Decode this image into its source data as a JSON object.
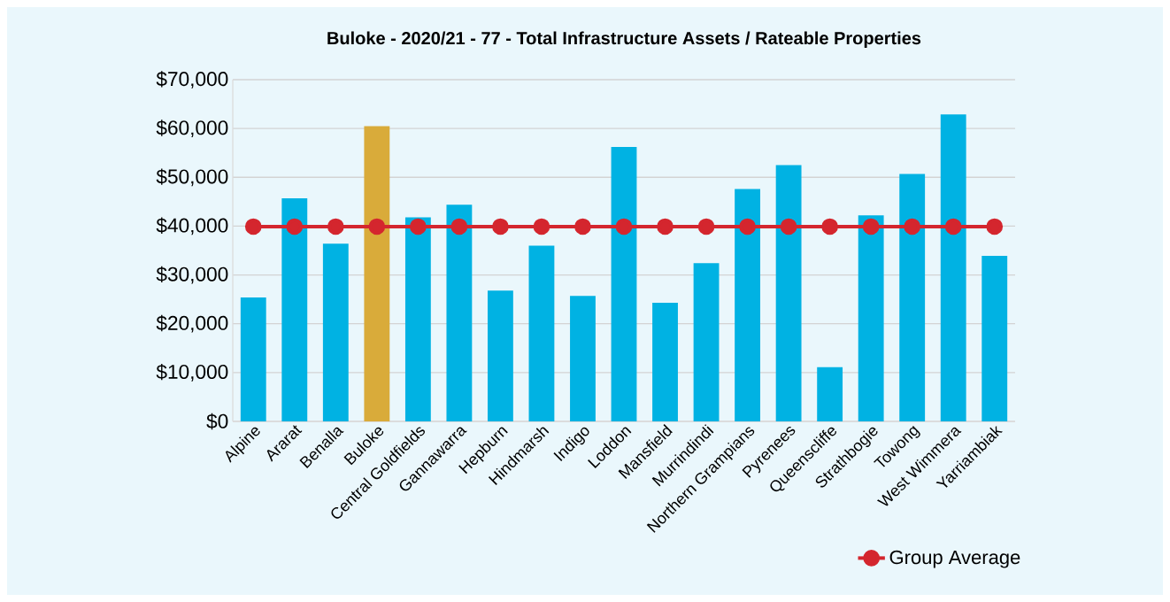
{
  "chart_data": {
    "type": "bar",
    "title": "Buloke - 2020/21 - 77 - Total Infrastructure Assets / Rateable Properties",
    "categories": [
      "Alpine",
      "Ararat",
      "Benalla",
      "Buloke",
      "Central Goldfields",
      "Gannawarra",
      "Hepburn",
      "Hindmarsh",
      "Indigo",
      "Loddon",
      "Mansfield",
      "Murrindindi",
      "Northern Grampians",
      "Pyrenees",
      "Queenscliffe",
      "Strathbogie",
      "Towong",
      "West Wimmera",
      "Yarriambiak"
    ],
    "series": [
      {
        "values": [
          25400,
          45700,
          36400,
          60500,
          41800,
          44400,
          26800,
          36000,
          25700,
          56200,
          24300,
          32400,
          47600,
          52500,
          11100,
          42200,
          50700,
          62900,
          33900
        ],
        "colors": [
          "#00b2e3",
          "#00b2e3",
          "#00b2e3",
          "#d9ab3a",
          "#00b2e3",
          "#00b2e3",
          "#00b2e3",
          "#00b2e3",
          "#00b2e3",
          "#00b2e3",
          "#00b2e3",
          "#00b2e3",
          "#00b2e3",
          "#00b2e3",
          "#00b2e3",
          "#00b2e3",
          "#00b2e3",
          "#00b2e3",
          "#00b2e3"
        ]
      },
      {
        "type": "line",
        "name": "Group Average",
        "color": "#d4262e",
        "marker": "circle",
        "values": [
          39900,
          39900,
          39900,
          39900,
          39900,
          39900,
          39900,
          39900,
          39900,
          39900,
          39900,
          39900,
          39900,
          39900,
          39900,
          39900,
          39900,
          39900,
          39900
        ]
      }
    ],
    "ylim": [
      0,
      70000
    ],
    "yticks": [
      {
        "value": 0,
        "label": "$0"
      },
      {
        "value": 10000,
        "label": "$10,000"
      },
      {
        "value": 20000,
        "label": "$20,000"
      },
      {
        "value": 30000,
        "label": "$30,000"
      },
      {
        "value": 40000,
        "label": "$40,000"
      },
      {
        "value": 50000,
        "label": "$50,000"
      },
      {
        "value": 60000,
        "label": "$60,000"
      },
      {
        "value": 70000,
        "label": "$70,000"
      }
    ],
    "grid": "y",
    "legend": "bottom right"
  }
}
